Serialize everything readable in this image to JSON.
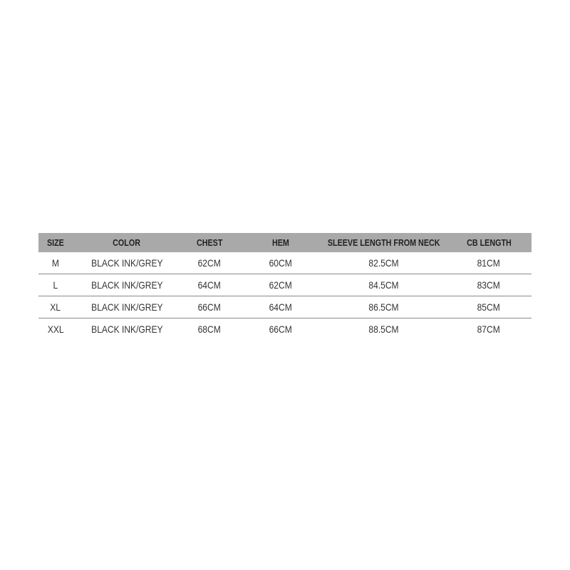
{
  "table": {
    "header_color": "#a9a9a9",
    "columns": [
      "SIZE",
      "COLOR",
      "CHEST",
      "HEM",
      "SLEEVE LENGTH FROM NECK",
      "CB LENGTH"
    ],
    "rows": [
      [
        "M",
        "BLACK INK/GREY",
        "62CM",
        "60CM",
        "82.5CM",
        "81CM"
      ],
      [
        "L",
        "BLACK INK/GREY",
        "64CM",
        "62CM",
        "84.5CM",
        "83CM"
      ],
      [
        "XL",
        "BLACK INK/GREY",
        "66CM",
        "64CM",
        "86.5CM",
        "85CM"
      ],
      [
        "XXL",
        "BLACK INK/GREY",
        "68CM",
        "66CM",
        "88.5CM",
        "87CM"
      ]
    ]
  }
}
